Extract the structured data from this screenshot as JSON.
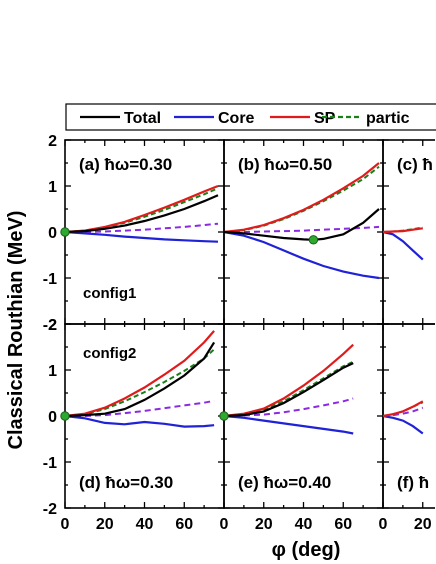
{
  "chart_data": {
    "type": "line",
    "ylabel": "Classical Routhian (MeV)",
    "xlabel": "φ (deg)",
    "xlim": [
      0,
      80
    ],
    "ylim": [
      -2,
      2
    ],
    "x_ticks": [
      0,
      20,
      40,
      60
    ],
    "y_ticks": [
      -2,
      -1,
      0,
      1,
      2
    ],
    "legend": {
      "placement": "top",
      "entries": [
        {
          "label": "Total",
          "color": "#000000",
          "dash": "solid"
        },
        {
          "label": "Core",
          "color": "#1f22d6",
          "dash": "solid"
        },
        {
          "label": "SP",
          "color": "#e01b1b",
          "dash": "solid"
        },
        {
          "label": "partic",
          "color": "#1a7f1a",
          "dash": "dashed"
        }
      ]
    },
    "panels": [
      {
        "label": "(a) ħω=0.30",
        "config": "config1",
        "series": [
          {
            "key": "total",
            "x": [
              0,
              10,
              20,
              30,
              40,
              50,
              60,
              70,
              77
            ],
            "y": [
              0,
              0.02,
              0.07,
              0.14,
              0.24,
              0.36,
              0.5,
              0.67,
              0.8
            ]
          },
          {
            "key": "core",
            "x": [
              0,
              10,
              20,
              30,
              40,
              50,
              60,
              70,
              77
            ],
            "y": [
              0,
              -0.03,
              -0.06,
              -0.1,
              -0.13,
              -0.16,
              -0.18,
              -0.2,
              -0.21
            ]
          },
          {
            "key": "sp",
            "x": [
              0,
              10,
              20,
              30,
              40,
              50,
              60,
              70,
              77
            ],
            "y": [
              0,
              0.03,
              0.11,
              0.22,
              0.37,
              0.53,
              0.7,
              0.88,
              1.0
            ]
          },
          {
            "key": "particle",
            "x": [
              0,
              10,
              20,
              30,
              40,
              50,
              60,
              70,
              77
            ],
            "y": [
              0,
              0.03,
              0.1,
              0.2,
              0.33,
              0.48,
              0.65,
              0.82,
              0.95
            ]
          },
          {
            "key": "purple",
            "x": [
              0,
              10,
              20,
              30,
              40,
              50,
              60,
              70,
              77
            ],
            "y": [
              0,
              0.0,
              0.01,
              0.03,
              0.05,
              0.08,
              0.11,
              0.15,
              0.18
            ]
          }
        ],
        "markers": [
          {
            "x": 0,
            "y": 0
          }
        ]
      },
      {
        "label": "(b) ħω=0.50",
        "config": "",
        "series": [
          {
            "key": "total",
            "x": [
              0,
              10,
              20,
              30,
              40,
              45,
              50,
              60,
              70,
              78
            ],
            "y": [
              0,
              -0.03,
              -0.08,
              -0.13,
              -0.16,
              -0.17,
              -0.15,
              -0.05,
              0.2,
              0.5
            ]
          },
          {
            "key": "core",
            "x": [
              0,
              10,
              20,
              30,
              40,
              50,
              60,
              70,
              78
            ],
            "y": [
              0,
              -0.08,
              -0.22,
              -0.4,
              -0.58,
              -0.74,
              -0.86,
              -0.95,
              -1.0
            ]
          },
          {
            "key": "sp",
            "x": [
              0,
              10,
              20,
              30,
              40,
              50,
              60,
              70,
              78
            ],
            "y": [
              0,
              0.05,
              0.15,
              0.3,
              0.48,
              0.7,
              0.95,
              1.22,
              1.5
            ]
          },
          {
            "key": "particle",
            "x": [
              0,
              10,
              20,
              30,
              40,
              50,
              60,
              70,
              78
            ],
            "y": [
              0,
              0.04,
              0.14,
              0.28,
              0.46,
              0.67,
              0.9,
              1.15,
              1.42
            ]
          },
          {
            "key": "purple",
            "x": [
              0,
              10,
              20,
              30,
              40,
              50,
              60,
              70,
              78
            ],
            "y": [
              0,
              0.0,
              0.01,
              0.02,
              0.03,
              0.05,
              0.07,
              0.09,
              0.11
            ]
          }
        ],
        "markers": [
          {
            "x": 45,
            "y": -0.17
          }
        ]
      },
      {
        "label": "(c) ħ",
        "config": "",
        "series": [
          {
            "key": "core",
            "x": [
              0,
              5,
              10,
              15,
              20
            ],
            "y": [
              0,
              -0.05,
              -0.2,
              -0.4,
              -0.6
            ]
          },
          {
            "key": "particle",
            "x": [
              0,
              5,
              10,
              15,
              20
            ],
            "y": [
              0,
              0.01,
              0.03,
              0.06,
              0.1
            ]
          },
          {
            "key": "sp",
            "x": [
              0,
              5,
              10,
              15,
              20
            ],
            "y": [
              0,
              0.01,
              0.02,
              0.05,
              0.08
            ]
          }
        ],
        "markers": []
      },
      {
        "label": "(d) ħω=0.30",
        "config": "config2",
        "series": [
          {
            "key": "total",
            "x": [
              0,
              10,
              20,
              30,
              40,
              50,
              60,
              70,
              75
            ],
            "y": [
              0,
              0.02,
              0.05,
              0.15,
              0.35,
              0.6,
              0.88,
              1.25,
              1.6
            ]
          },
          {
            "key": "core",
            "x": [
              0,
              10,
              20,
              30,
              40,
              50,
              60,
              70,
              75
            ],
            "y": [
              0,
              -0.05,
              -0.15,
              -0.18,
              -0.13,
              -0.17,
              -0.23,
              -0.22,
              -0.2
            ]
          },
          {
            "key": "sp",
            "x": [
              0,
              10,
              20,
              30,
              40,
              50,
              60,
              70,
              75
            ],
            "y": [
              0,
              0.05,
              0.18,
              0.38,
              0.62,
              0.9,
              1.2,
              1.6,
              1.85
            ]
          },
          {
            "key": "particle",
            "x": [
              0,
              10,
              20,
              30,
              40,
              50,
              60,
              70,
              75
            ],
            "y": [
              0,
              0.04,
              0.15,
              0.32,
              0.52,
              0.74,
              0.98,
              1.25,
              1.45
            ]
          },
          {
            "key": "purple",
            "x": [
              0,
              10,
              20,
              30,
              40,
              50,
              60,
              70,
              75
            ],
            "y": [
              0,
              0.0,
              0.02,
              0.06,
              0.11,
              0.17,
              0.23,
              0.29,
              0.33
            ]
          }
        ],
        "markers": [
          {
            "x": 0,
            "y": 0
          }
        ]
      },
      {
        "label": "(e) ħω=0.40",
        "config": "",
        "series": [
          {
            "key": "total",
            "x": [
              0,
              10,
              20,
              30,
              40,
              50,
              60,
              65
            ],
            "y": [
              0,
              0.02,
              0.1,
              0.28,
              0.52,
              0.78,
              1.05,
              1.15
            ]
          },
          {
            "key": "core",
            "x": [
              0,
              10,
              20,
              30,
              40,
              50,
              60,
              65
            ],
            "y": [
              0,
              -0.04,
              -0.1,
              -0.16,
              -0.22,
              -0.28,
              -0.34,
              -0.38
            ]
          },
          {
            "key": "sp",
            "x": [
              0,
              10,
              20,
              30,
              40,
              50,
              60,
              65
            ],
            "y": [
              0,
              0.05,
              0.16,
              0.38,
              0.66,
              0.98,
              1.35,
              1.55
            ]
          },
          {
            "key": "particle",
            "x": [
              0,
              10,
              20,
              30,
              40,
              50,
              60,
              65
            ],
            "y": [
              0,
              0.04,
              0.14,
              0.32,
              0.56,
              0.82,
              1.08,
              1.18
            ]
          },
          {
            "key": "purple",
            "x": [
              0,
              10,
              20,
              30,
              40,
              50,
              60,
              65
            ],
            "y": [
              0,
              0.01,
              0.03,
              0.08,
              0.15,
              0.23,
              0.32,
              0.38
            ]
          }
        ],
        "markers": [
          {
            "x": 0,
            "y": 0
          }
        ]
      },
      {
        "label": "(f) ħ",
        "config": "",
        "series": [
          {
            "key": "core",
            "x": [
              0,
              5,
              10,
              15,
              20
            ],
            "y": [
              0,
              -0.04,
              -0.1,
              -0.22,
              -0.38
            ]
          },
          {
            "key": "sp",
            "x": [
              0,
              5,
              10,
              15,
              20
            ],
            "y": [
              0,
              0.04,
              0.1,
              0.2,
              0.32
            ]
          },
          {
            "key": "particle",
            "x": [
              0,
              5,
              10,
              15,
              20
            ],
            "y": [
              0,
              0.04,
              0.1,
              0.2,
              0.3
            ]
          },
          {
            "key": "purple",
            "x": [
              0,
              5,
              10,
              15,
              20
            ],
            "y": [
              0,
              0.02,
              0.05,
              0.1,
              0.18
            ]
          }
        ],
        "markers": []
      }
    ]
  },
  "colors": {
    "total": "#000000",
    "core": "#1f22d6",
    "sp": "#e01b1b",
    "particle": "#1a7f1a",
    "purple": "#8a2be2",
    "marker": "#2fa82f"
  }
}
